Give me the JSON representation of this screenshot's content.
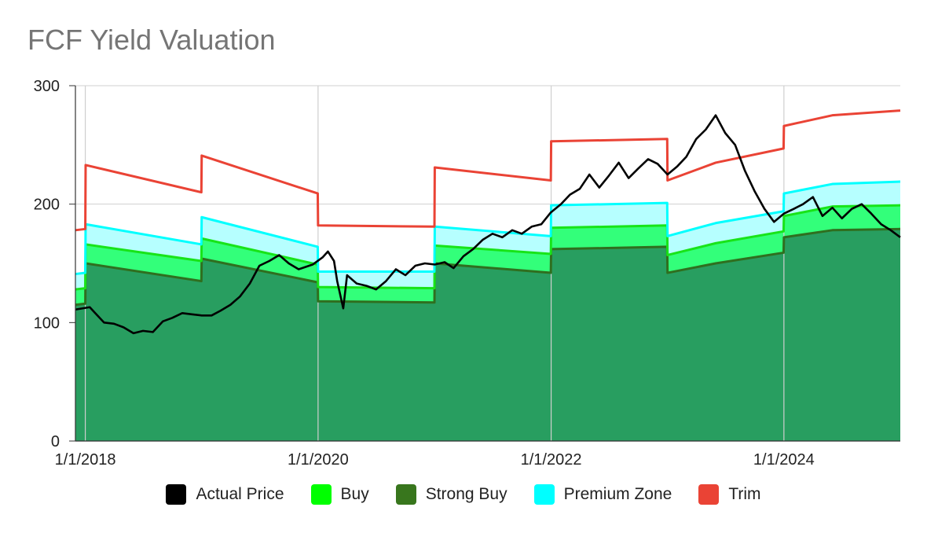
{
  "chart_data": {
    "type": "area",
    "title": "FCF Yield Valuation",
    "xlabel": "",
    "ylabel": "",
    "ylim": [
      0,
      300
    ],
    "xlim": [
      "2017-12-01",
      "2024-12-31"
    ],
    "y_ticks": [
      0,
      100,
      200,
      300
    ],
    "x_ticks": [
      {
        "date": "2018-01-01",
        "label": "1/1/2018"
      },
      {
        "date": "2020-01-01",
        "label": "1/1/2020"
      },
      {
        "date": "2022-01-01",
        "label": "1/1/2022"
      },
      {
        "date": "2024-01-01",
        "label": "1/1/2024"
      }
    ],
    "grid": "vertical",
    "legend_position": "bottom",
    "series": [
      {
        "name": "Strong Buy",
        "color": "#2f6f1f",
        "fill": "#289e60",
        "points": [
          [
            "2017-12-01",
            115
          ],
          [
            "2018-01-01",
            116
          ],
          [
            "2018-01-02",
            150
          ],
          [
            "2018-12-31",
            135
          ],
          [
            "2019-01-01",
            154
          ],
          [
            "2019-12-31",
            134
          ],
          [
            "2020-01-01",
            118
          ],
          [
            "2020-12-31",
            117
          ],
          [
            "2021-01-01",
            150
          ],
          [
            "2021-12-31",
            142
          ],
          [
            "2022-01-01",
            162
          ],
          [
            "2022-12-31",
            164
          ],
          [
            "2023-01-01",
            142
          ],
          [
            "2023-06-01",
            150
          ],
          [
            "2023-12-31",
            159
          ],
          [
            "2024-01-01",
            172
          ],
          [
            "2024-06-01",
            178
          ],
          [
            "2024-12-31",
            179
          ]
        ]
      },
      {
        "name": "Buy",
        "color": "#18e418",
        "fill": "#33ff7a",
        "points": [
          [
            "2017-12-01",
            128
          ],
          [
            "2018-01-01",
            129
          ],
          [
            "2018-01-02",
            166
          ],
          [
            "2018-12-31",
            152
          ],
          [
            "2019-01-01",
            171
          ],
          [
            "2019-12-31",
            149
          ],
          [
            "2020-01-01",
            130
          ],
          [
            "2020-12-31",
            129
          ],
          [
            "2021-01-01",
            165
          ],
          [
            "2021-12-31",
            158
          ],
          [
            "2022-01-01",
            180
          ],
          [
            "2022-12-31",
            182
          ],
          [
            "2023-01-01",
            157
          ],
          [
            "2023-06-01",
            167
          ],
          [
            "2023-12-31",
            177
          ],
          [
            "2024-01-01",
            190
          ],
          [
            "2024-06-01",
            198
          ],
          [
            "2024-12-31",
            199
          ]
        ]
      },
      {
        "name": "Premium Zone",
        "color": "#00ffff",
        "fill": "#b6ffff",
        "points": [
          [
            "2017-12-01",
            141
          ],
          [
            "2018-01-01",
            142
          ],
          [
            "2018-01-02",
            183
          ],
          [
            "2018-12-31",
            166
          ],
          [
            "2019-01-01",
            189
          ],
          [
            "2019-12-31",
            164
          ],
          [
            "2020-01-01",
            143
          ],
          [
            "2020-12-31",
            143
          ],
          [
            "2021-01-01",
            181
          ],
          [
            "2021-12-31",
            173
          ],
          [
            "2022-01-01",
            199
          ],
          [
            "2022-12-31",
            201
          ],
          [
            "2023-01-01",
            173
          ],
          [
            "2023-06-01",
            184
          ],
          [
            "2023-12-31",
            194
          ],
          [
            "2024-01-01",
            209
          ],
          [
            "2024-06-01",
            217
          ],
          [
            "2024-12-31",
            219
          ]
        ]
      },
      {
        "name": "Trim",
        "color": "#ea4335",
        "points": [
          [
            "2017-12-01",
            178
          ],
          [
            "2018-01-01",
            179
          ],
          [
            "2018-01-02",
            233
          ],
          [
            "2018-12-31",
            210
          ],
          [
            "2019-01-01",
            241
          ],
          [
            "2019-12-31",
            209
          ],
          [
            "2020-01-01",
            182
          ],
          [
            "2020-12-31",
            181
          ],
          [
            "2021-01-01",
            231
          ],
          [
            "2021-12-31",
            220
          ],
          [
            "2022-01-01",
            253
          ],
          [
            "2022-12-31",
            255
          ],
          [
            "2023-01-01",
            220
          ],
          [
            "2023-06-01",
            235
          ],
          [
            "2023-12-31",
            247
          ],
          [
            "2024-01-01",
            266
          ],
          [
            "2024-06-01",
            275
          ],
          [
            "2024-12-31",
            279
          ]
        ]
      },
      {
        "name": "Actual Price",
        "color": "#000000",
        "points": [
          [
            "2017-12-01",
            111
          ],
          [
            "2018-01-15",
            113
          ],
          [
            "2018-02-01",
            108
          ],
          [
            "2018-03-01",
            100
          ],
          [
            "2018-04-01",
            99
          ],
          [
            "2018-05-01",
            96
          ],
          [
            "2018-06-01",
            91
          ],
          [
            "2018-07-01",
            93
          ],
          [
            "2018-08-01",
            92
          ],
          [
            "2018-09-01",
            101
          ],
          [
            "2018-10-01",
            104
          ],
          [
            "2018-11-01",
            108
          ],
          [
            "2018-12-01",
            107
          ],
          [
            "2019-01-01",
            106
          ],
          [
            "2019-02-01",
            106
          ],
          [
            "2019-03-01",
            110
          ],
          [
            "2019-04-01",
            115
          ],
          [
            "2019-05-01",
            122
          ],
          [
            "2019-06-01",
            133
          ],
          [
            "2019-07-01",
            148
          ],
          [
            "2019-08-01",
            152
          ],
          [
            "2019-09-01",
            157
          ],
          [
            "2019-10-01",
            150
          ],
          [
            "2019-11-01",
            145
          ],
          [
            "2019-12-15",
            149
          ],
          [
            "2020-01-15",
            155
          ],
          [
            "2020-02-01",
            160
          ],
          [
            "2020-02-20",
            152
          ],
          [
            "2020-03-01",
            135
          ],
          [
            "2020-03-20",
            112
          ],
          [
            "2020-04-01",
            140
          ],
          [
            "2020-05-01",
            133
          ],
          [
            "2020-06-01",
            131
          ],
          [
            "2020-07-01",
            128
          ],
          [
            "2020-08-01",
            135
          ],
          [
            "2020-09-01",
            145
          ],
          [
            "2020-10-01",
            140
          ],
          [
            "2020-11-01",
            148
          ],
          [
            "2020-12-01",
            150
          ],
          [
            "2021-01-01",
            149
          ],
          [
            "2021-02-01",
            151
          ],
          [
            "2021-03-01",
            146
          ],
          [
            "2021-04-01",
            156
          ],
          [
            "2021-05-01",
            162
          ],
          [
            "2021-06-01",
            170
          ],
          [
            "2021-07-01",
            175
          ],
          [
            "2021-08-01",
            172
          ],
          [
            "2021-09-01",
            178
          ],
          [
            "2021-10-01",
            175
          ],
          [
            "2021-11-01",
            181
          ],
          [
            "2021-12-01",
            183
          ],
          [
            "2021-12-31",
            193
          ],
          [
            "2022-02-01",
            200
          ],
          [
            "2022-03-01",
            208
          ],
          [
            "2022-04-01",
            213
          ],
          [
            "2022-05-01",
            225
          ],
          [
            "2022-06-01",
            214
          ],
          [
            "2022-07-01",
            224
          ],
          [
            "2022-08-01",
            235
          ],
          [
            "2022-09-01",
            222
          ],
          [
            "2022-10-01",
            230
          ],
          [
            "2022-11-01",
            238
          ],
          [
            "2022-12-01",
            234
          ],
          [
            "2023-01-01",
            225
          ],
          [
            "2023-02-01",
            232
          ],
          [
            "2023-03-01",
            240
          ],
          [
            "2023-04-01",
            255
          ],
          [
            "2023-05-01",
            263
          ],
          [
            "2023-06-01",
            275
          ],
          [
            "2023-07-01",
            260
          ],
          [
            "2023-08-01",
            250
          ],
          [
            "2023-09-01",
            228
          ],
          [
            "2023-10-01",
            211
          ],
          [
            "2023-11-01",
            196
          ],
          [
            "2023-12-01",
            185
          ],
          [
            "2024-01-01",
            192
          ],
          [
            "2024-02-01",
            196
          ],
          [
            "2024-03-01",
            200
          ],
          [
            "2024-04-01",
            206
          ],
          [
            "2024-05-01",
            190
          ],
          [
            "2024-06-01",
            197
          ],
          [
            "2024-07-01",
            188
          ],
          [
            "2024-08-01",
            196
          ],
          [
            "2024-09-01",
            200
          ],
          [
            "2024-10-01",
            192
          ],
          [
            "2024-11-01",
            183
          ],
          [
            "2024-12-01",
            178
          ],
          [
            "2024-12-31",
            172
          ]
        ]
      }
    ]
  },
  "legend": [
    {
      "label": "Actual Price",
      "color": "#000000"
    },
    {
      "label": "Buy",
      "color": "#00ff00"
    },
    {
      "label": "Strong Buy",
      "color": "#38761d"
    },
    {
      "label": "Premium Zone",
      "color": "#00ffff"
    },
    {
      "label": "Trim",
      "color": "#ea4335"
    }
  ]
}
